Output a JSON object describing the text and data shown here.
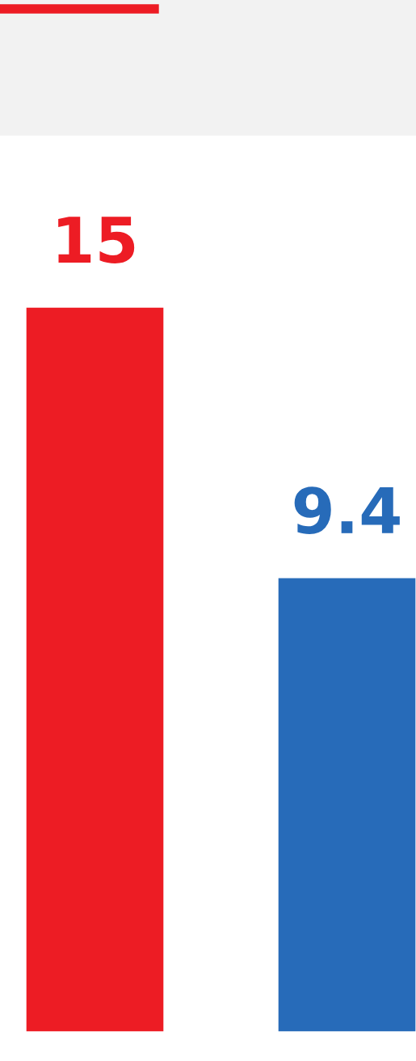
{
  "chart_data": {
    "type": "bar",
    "categories": [
      null,
      null
    ],
    "values": [
      15,
      9.4
    ],
    "colors": [
      "#ed1c24",
      "#276bb9"
    ],
    "data_labels": true
  }
}
